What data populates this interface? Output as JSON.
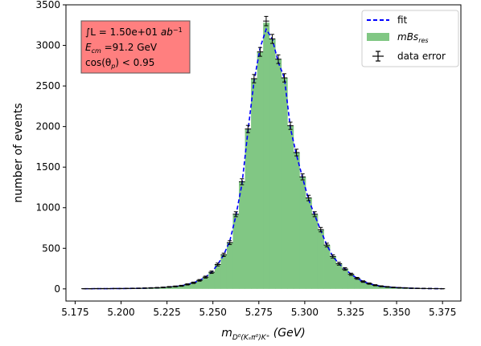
{
  "chart_data": {
    "type": "bar",
    "xlabel_main": "m",
    "xlabel_sub": "D⁰(Kₛπ⁰)K⁺",
    "xlabel_unit": " (GeV)",
    "ylabel": "number of events",
    "xlim": [
      5.17,
      5.385
    ],
    "ylim": [
      -150,
      3500
    ],
    "xticks": [
      "5.175",
      "5.200",
      "5.225",
      "5.250",
      "5.275",
      "5.300",
      "5.325",
      "5.350",
      "5.375"
    ],
    "xtick_values": [
      5.175,
      5.2,
      5.225,
      5.25,
      5.275,
      5.3,
      5.325,
      5.35,
      5.375
    ],
    "yticks": [
      "0",
      "500",
      "1000",
      "1500",
      "2000",
      "2500",
      "3000",
      "3500"
    ],
    "ytick_values": [
      0,
      500,
      1000,
      1500,
      2000,
      2500,
      3000,
      3500
    ],
    "bin_width": 0.0033,
    "x": [
      5.18,
      5.1833,
      5.1866,
      5.1899,
      5.1932,
      5.1965,
      5.1998,
      5.2031,
      5.2064,
      5.2097,
      5.213,
      5.2163,
      5.2196,
      5.2229,
      5.2262,
      5.2295,
      5.2328,
      5.2361,
      5.2394,
      5.2427,
      5.246,
      5.2493,
      5.2526,
      5.2559,
      5.2592,
      5.2625,
      5.2658,
      5.2691,
      5.2724,
      5.2757,
      5.279,
      5.2823,
      5.2856,
      5.2889,
      5.2922,
      5.2955,
      5.2988,
      5.3021,
      5.3054,
      5.3087,
      5.312,
      5.3153,
      5.3186,
      5.3219,
      5.3252,
      5.3285,
      5.3318,
      5.3351,
      5.3384,
      5.3417,
      5.345,
      5.3483,
      5.3516,
      5.3549,
      5.3582,
      5.3615,
      5.3648,
      5.3681,
      5.3714,
      5.3747
    ],
    "series": [
      {
        "name": "mBs_res",
        "kind": "histogram",
        "color": "#81c784",
        "values": [
          2,
          2,
          3,
          3,
          3,
          4,
          4,
          5,
          6,
          7,
          9,
          11,
          14,
          18,
          24,
          30,
          38,
          55,
          75,
          105,
          145,
          205,
          300,
          420,
          570,
          920,
          1320,
          1970,
          2590,
          2920,
          3280,
          3080,
          2830,
          2600,
          2010,
          1680,
          1380,
          1120,
          920,
          730,
          540,
          400,
          310,
          245,
          180,
          130,
          90,
          65,
          45,
          32,
          24,
          18,
          14,
          11,
          8,
          6,
          5,
          4,
          3,
          2
        ]
      },
      {
        "name": "fit",
        "kind": "line",
        "color": "#0000ff",
        "values": [
          2,
          2,
          3,
          3,
          3,
          4,
          4,
          5,
          6,
          7,
          9,
          11,
          14,
          18,
          24,
          30,
          38,
          55,
          75,
          105,
          145,
          205,
          300,
          420,
          590,
          900,
          1290,
          1950,
          2560,
          2970,
          3200,
          3080,
          2790,
          2600,
          1980,
          1650,
          1370,
          1100,
          910,
          720,
          540,
          400,
          310,
          245,
          180,
          130,
          90,
          65,
          45,
          32,
          24,
          18,
          14,
          11,
          8,
          6,
          5,
          4,
          3,
          2
        ]
      },
      {
        "name": "data error",
        "kind": "errorbar",
        "color": "#000000",
        "values": [
          2,
          2,
          3,
          3,
          3,
          4,
          4,
          5,
          6,
          7,
          9,
          11,
          14,
          18,
          24,
          30,
          38,
          55,
          75,
          105,
          145,
          205,
          300,
          420,
          570,
          920,
          1320,
          1970,
          2590,
          2920,
          3300,
          3080,
          2830,
          2600,
          2010,
          1680,
          1380,
          1120,
          920,
          730,
          540,
          400,
          310,
          245,
          180,
          130,
          90,
          65,
          45,
          32,
          24,
          18,
          14,
          11,
          8,
          6,
          5,
          4,
          3,
          2
        ]
      }
    ],
    "legend": {
      "placement": "top-right",
      "fit_label": "fit",
      "hist_label_main": "mBs",
      "hist_label_sub": "res",
      "err_label": "data error"
    },
    "annotation": {
      "color": "#ff7f7f",
      "line1_prefix": "∫L = 1.50e+01 ",
      "line1_unit": "ab",
      "line1_exp": "−1",
      "line2_main": "E",
      "line2_sub": "cm",
      "line2_rest": " =91.2 GeV",
      "line3_main": "cos(θ",
      "line3_sub": "p",
      "line3_rest": ") < 0.95"
    }
  }
}
